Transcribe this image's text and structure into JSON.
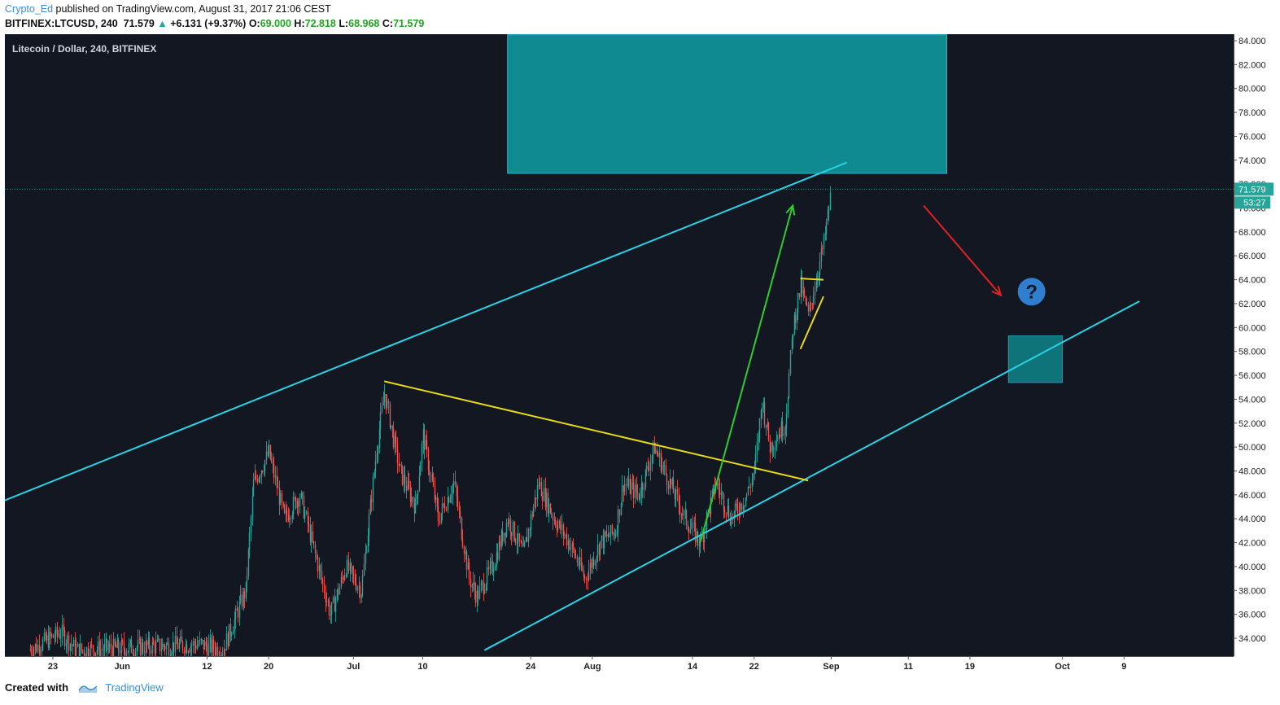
{
  "header": {
    "author": "Crypto_Ed",
    "published_text": "published on TradingView.com, August 31, 2017 21:06 CEST",
    "symbol": "BITFINEX:LTCUSD, 240",
    "last": "71.579",
    "change": "+6.131 (+9.37%)",
    "open_label": "O:",
    "open": "69.000",
    "high_label": "H:",
    "high": "72.818",
    "low_label": "L:",
    "low": "68.968",
    "close_label": "C:",
    "close": "71.579"
  },
  "chart_data": {
    "type": "candlestick",
    "title": "Litecoin / Dollar, 240, BITFINEX",
    "ylim": [
      33,
      84
    ],
    "y_ticks": [
      "34.000",
      "36.000",
      "38.000",
      "40.000",
      "42.000",
      "44.000",
      "46.000",
      "48.000",
      "50.000",
      "52.000",
      "54.000",
      "56.000",
      "58.000",
      "60.000",
      "62.000",
      "64.000",
      "66.000",
      "68.000",
      "70.000",
      "72.000",
      "74.000",
      "76.000",
      "78.000",
      "80.000",
      "82.000",
      "84.000"
    ],
    "x_ticks": [
      {
        "label": "23",
        "date": "2017-05-23"
      },
      {
        "label": "Jun",
        "date": "2017-06-01"
      },
      {
        "label": "12",
        "date": "2017-06-12"
      },
      {
        "label": "20",
        "date": "2017-06-20"
      },
      {
        "label": "Jul",
        "date": "2017-07-01"
      },
      {
        "label": "10",
        "date": "2017-07-10"
      },
      {
        "label": "24",
        "date": "2017-07-24"
      },
      {
        "label": "Aug",
        "date": "2017-08-01"
      },
      {
        "label": "14",
        "date": "2017-08-14"
      },
      {
        "label": "22",
        "date": "2017-08-22"
      },
      {
        "label": "Sep",
        "date": "2017-09-01"
      },
      {
        "label": "11",
        "date": "2017-09-11"
      },
      {
        "label": "19",
        "date": "2017-09-19"
      },
      {
        "label": "Oct",
        "date": "2017-10-01"
      },
      {
        "label": "9",
        "date": "2017-10-09"
      }
    ],
    "price_path": [
      {
        "date": "2017-05-20",
        "price": 33.0
      },
      {
        "date": "2017-05-24",
        "price": 34.5
      },
      {
        "date": "2017-05-26",
        "price": 33.0
      },
      {
        "date": "2017-06-11",
        "price": 33.5
      },
      {
        "date": "2017-06-14",
        "price": 33.0
      },
      {
        "date": "2017-06-17",
        "price": 38.0
      },
      {
        "date": "2017-06-18",
        "price": 47.0
      },
      {
        "date": "2017-06-20",
        "price": 49.5
      },
      {
        "date": "2017-06-22",
        "price": 44.0
      },
      {
        "date": "2017-06-24",
        "price": 46.0
      },
      {
        "date": "2017-06-26",
        "price": 41.0
      },
      {
        "date": "2017-06-28",
        "price": 36.0
      },
      {
        "date": "2017-06-30",
        "price": 40.0
      },
      {
        "date": "2017-07-02",
        "price": 38.0
      },
      {
        "date": "2017-07-04",
        "price": 50.0
      },
      {
        "date": "2017-07-05",
        "price": 54.5
      },
      {
        "date": "2017-07-07",
        "price": 48.0
      },
      {
        "date": "2017-07-09",
        "price": 45.0
      },
      {
        "date": "2017-07-10",
        "price": 51.0
      },
      {
        "date": "2017-07-12",
        "price": 44.0
      },
      {
        "date": "2017-07-14",
        "price": 47.0
      },
      {
        "date": "2017-07-16",
        "price": 39.0
      },
      {
        "date": "2017-07-17",
        "price": 37.5
      },
      {
        "date": "2017-07-19",
        "price": 40.0
      },
      {
        "date": "2017-07-21",
        "price": 44.0
      },
      {
        "date": "2017-07-23",
        "price": 41.0
      },
      {
        "date": "2017-07-25",
        "price": 47.0
      },
      {
        "date": "2017-07-27",
        "price": 44.0
      },
      {
        "date": "2017-07-29",
        "price": 42.0
      },
      {
        "date": "2017-07-31",
        "price": 39.0
      },
      {
        "date": "2017-08-02",
        "price": 42.0
      },
      {
        "date": "2017-08-04",
        "price": 43.0
      },
      {
        "date": "2017-08-05",
        "price": 47.0
      },
      {
        "date": "2017-08-07",
        "price": 46.0
      },
      {
        "date": "2017-08-09",
        "price": 50.0
      },
      {
        "date": "2017-08-11",
        "price": 47.0
      },
      {
        "date": "2017-08-13",
        "price": 44.0
      },
      {
        "date": "2017-08-15",
        "price": 42.0
      },
      {
        "date": "2017-08-17",
        "price": 47.0
      },
      {
        "date": "2017-08-19",
        "price": 44.0
      },
      {
        "date": "2017-08-21",
        "price": 46.0
      },
      {
        "date": "2017-08-22",
        "price": 48.0
      },
      {
        "date": "2017-08-23",
        "price": 54.0
      },
      {
        "date": "2017-08-24",
        "price": 50.0
      },
      {
        "date": "2017-08-26",
        "price": 52.0
      },
      {
        "date": "2017-08-27",
        "price": 60.0
      },
      {
        "date": "2017-08-28",
        "price": 63.5
      },
      {
        "date": "2017-08-29",
        "price": 61.0
      },
      {
        "date": "2017-08-30",
        "price": 64.0
      },
      {
        "date": "2017-08-31",
        "price": 67.0
      },
      {
        "date": "2017-09-01",
        "price": 71.579
      }
    ],
    "drawings": {
      "upper_channel": [
        {
          "date": "2017-04-30",
          "price": 41.2
        },
        {
          "date": "2017-09-03",
          "price": 73.8
        }
      ],
      "lower_channel": [
        {
          "date": "2017-07-18",
          "price": 33.0
        },
        {
          "date": "2017-10-11",
          "price": 62.2
        }
      ],
      "resistance_line": [
        {
          "date": "2017-07-05",
          "price": 55.5
        },
        {
          "date": "2017-08-29",
          "price": 47.2
        }
      ],
      "flag_top": [
        {
          "date": "2017-08-28",
          "price": 64.1
        },
        {
          "date": "2017-08-31",
          "price": 64.0
        }
      ],
      "flag_bottom": [
        {
          "date": "2017-08-28",
          "price": 58.2
        },
        {
          "date": "2017-08-31",
          "price": 62.6
        }
      ],
      "green_arrow": [
        {
          "date": "2017-08-15",
          "price": 42.0
        },
        {
          "date": "2017-08-27",
          "price": 70.2
        }
      ],
      "red_arrow": [
        {
          "date": "2017-09-13",
          "price": 70.2
        },
        {
          "date": "2017-09-23",
          "price": 62.7
        }
      ],
      "target_box": {
        "from": "2017-07-21",
        "to": "2017-09-16",
        "low": 72.9,
        "high": 84.5
      },
      "support_box": {
        "from": "2017-09-24",
        "to": "2017-10-01",
        "low": 55.4,
        "high": 59.3
      },
      "question_mark": {
        "date": "2017-09-27",
        "price": 63.0
      }
    },
    "last_price_label": "71.579",
    "countdown_label": "53:27"
  },
  "question_text": "?",
  "colors": {
    "background": "#131722",
    "channel": "#29d3e6",
    "yellow": "#e6d81f",
    "green_arrow": "#2ecc2e",
    "red_arrow": "#e02222",
    "box": "#0e9aa0",
    "up": "#26a69a",
    "down": "#ef5350",
    "question": "#2f7fd0"
  },
  "footer": {
    "created_with": "Created with",
    "brand": "TradingView"
  }
}
